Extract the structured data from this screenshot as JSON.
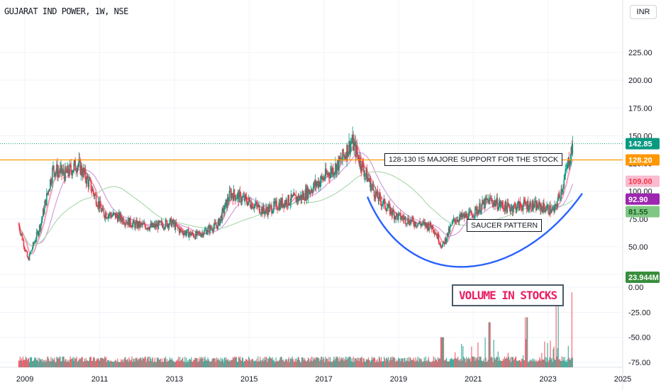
{
  "header": {
    "title": "GUJARAT IND POWER, 1W, NSE",
    "currency_button": "INR"
  },
  "annotations": {
    "support_note": "128-130 IS MAJORE SUPPORT FOR THE STOCK",
    "saucer_note": "SAUCER PATTERN",
    "volume_note": "VOLUME IN STOCKS"
  },
  "colors": {
    "support_line": "#ff9800",
    "last_price_line": "#089981",
    "saucer_curve": "#2962ff",
    "ma_fast": "#f48fb1",
    "ma_mid": "#ce93d8",
    "ma_slow": "#a5d6a7",
    "candle_up": "#089981",
    "candle_down": "#f23645",
    "volume_note_text": "#e91e63"
  },
  "chart_data": {
    "type": "candlestick",
    "x_axis": {
      "type": "time",
      "range": [
        "2008-10",
        "2025-06"
      ],
      "tick_labels": [
        "2009",
        "2011",
        "2013",
        "2015",
        "2017",
        "2019",
        "2021",
        "2023",
        "2025"
      ]
    },
    "price_axis": {
      "range": [
        18,
        248
      ],
      "tick_values": [
        25,
        50,
        75,
        100,
        125,
        150,
        175,
        200,
        225
      ],
      "tick_labels": [
        "25.00",
        "50.00",
        "75.00",
        "100.00",
        "125.00",
        "150.00",
        "175.00",
        "200.00",
        "225.00"
      ]
    },
    "volume_axis": {
      "range": [
        -80,
        5
      ],
      "tick_values": [
        0,
        -25,
        -50,
        -75
      ],
      "tick_labels": [
        "0.00",
        "-25.00",
        "-50.00",
        "-75.00"
      ]
    },
    "price_anchors": [
      [
        "2008-11",
        70
      ],
      [
        "2009-02",
        38
      ],
      [
        "2009-06",
        70
      ],
      [
        "2009-10",
        120
      ],
      [
        "2010-02",
        115
      ],
      [
        "2010-06",
        125
      ],
      [
        "2010-10",
        105
      ],
      [
        "2011-02",
        80
      ],
      [
        "2011-06",
        78
      ],
      [
        "2011-12",
        70
      ],
      [
        "2012-06",
        68
      ],
      [
        "2012-12",
        72
      ],
      [
        "2013-03",
        64
      ],
      [
        "2013-08",
        60
      ],
      [
        "2014-03",
        70
      ],
      [
        "2014-07",
        98
      ],
      [
        "2014-12",
        92
      ],
      [
        "2015-06",
        82
      ],
      [
        "2015-12",
        90
      ],
      [
        "2016-06",
        95
      ],
      [
        "2016-12",
        110
      ],
      [
        "2017-06",
        125
      ],
      [
        "2017-10",
        145
      ],
      [
        "2018-02",
        118
      ],
      [
        "2018-06",
        95
      ],
      [
        "2018-12",
        78
      ],
      [
        "2019-06",
        72
      ],
      [
        "2019-12",
        68
      ],
      [
        "2020-03",
        50
      ],
      [
        "2020-07",
        75
      ],
      [
        "2020-12",
        78
      ],
      [
        "2021-06",
        92
      ],
      [
        "2021-12",
        85
      ],
      [
        "2022-06",
        88
      ],
      [
        "2022-12",
        85
      ],
      [
        "2023-03",
        82
      ],
      [
        "2023-06",
        108
      ],
      [
        "2023-09",
        142.85
      ]
    ],
    "series": [
      {
        "name": "Close",
        "last_value": 142.85,
        "label": "142.85"
      },
      {
        "name": "Support",
        "value": 128.2,
        "label": "128.20"
      },
      {
        "value": 109.0,
        "label": "109.00"
      },
      {
        "value": 92.9,
        "label": "92.90"
      },
      {
        "value": 81.55,
        "label": "81.55"
      },
      {
        "name": "Volume",
        "last_value": 23.944,
        "label": "23.944M"
      }
    ],
    "support_level": 128.2,
    "saucer_pattern": {
      "start": "2018-03",
      "bottom": "2020-11",
      "bottom_value": 36,
      "end": "2023-12"
    },
    "volume_peaks": [
      [
        "2020-03",
        -50
      ],
      [
        "2021-06",
        -35
      ],
      [
        "2022-06",
        -30
      ],
      [
        "2023-04",
        -12
      ],
      [
        "2023-09",
        -5
      ]
    ],
    "grid": true,
    "legend": "none"
  }
}
